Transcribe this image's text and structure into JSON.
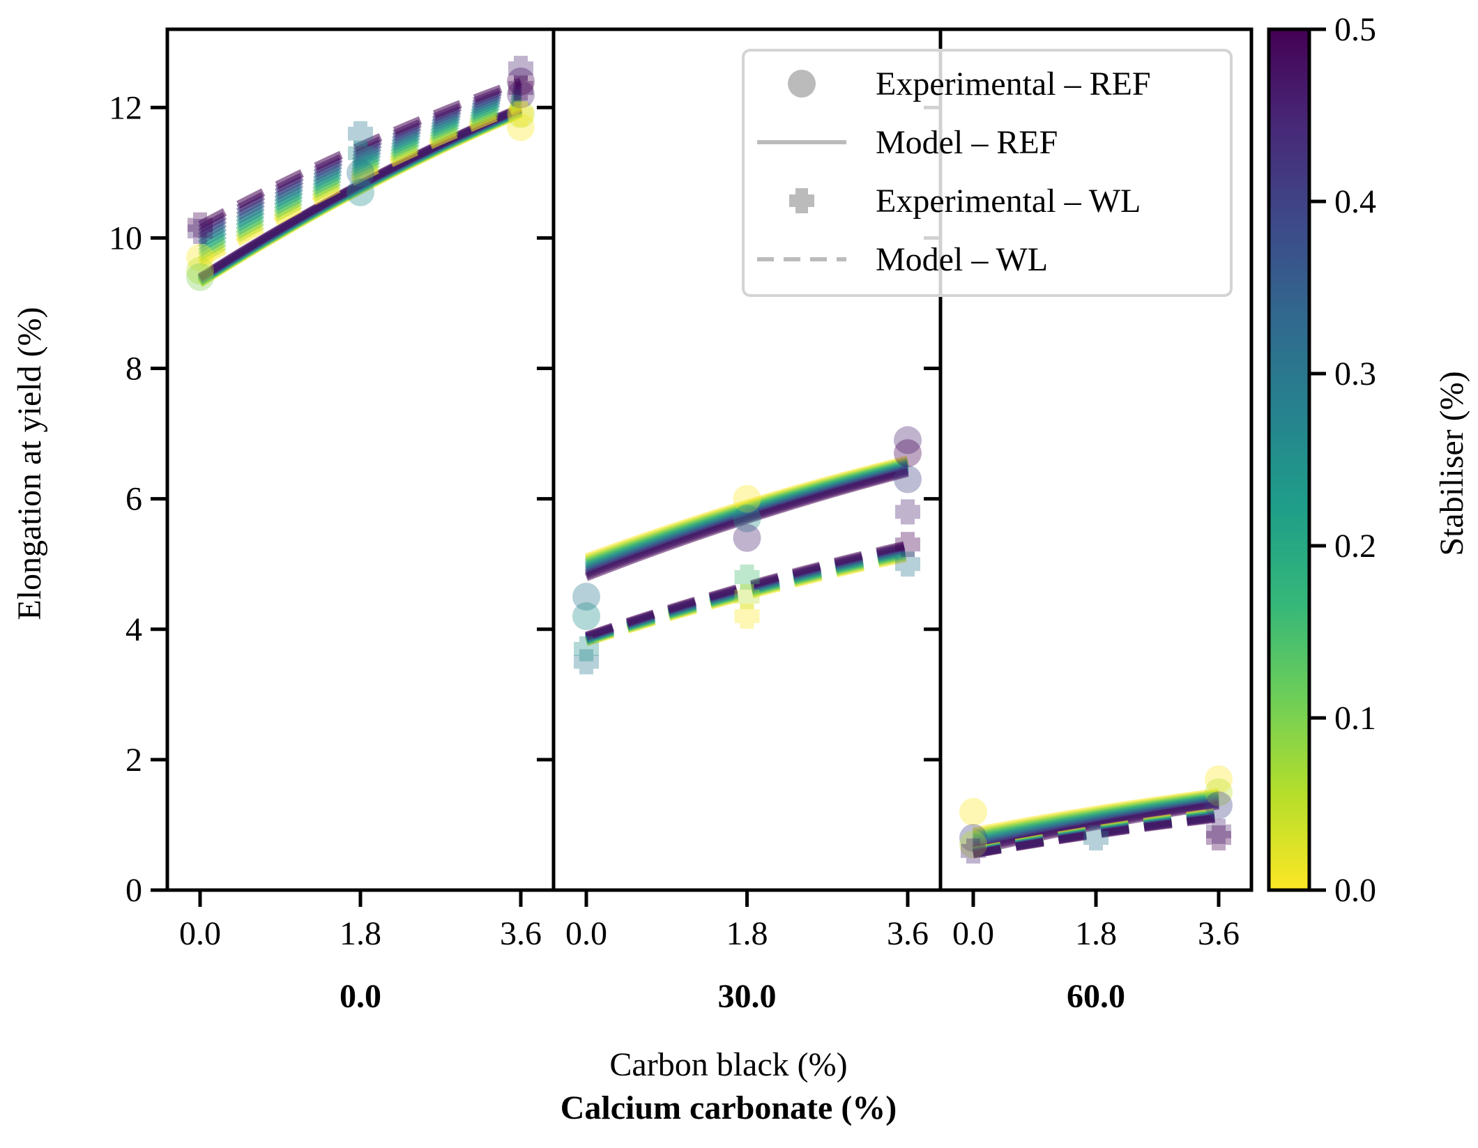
{
  "chart_data": {
    "type": "scatter",
    "ylabel": "Elongation at yield (%)",
    "xlabel": "Carbon black (%)",
    "group_axis_label": "Calcium carbonate (%)",
    "ylim": [
      0,
      13.2
    ],
    "yticks": [
      "0",
      "2",
      "4",
      "6",
      "8",
      "10",
      "12"
    ],
    "xticks": [
      "0.0",
      "1.8",
      "3.6"
    ],
    "colorbar": {
      "label": "Stabiliser (%)",
      "range": [
        0.0,
        0.5
      ],
      "ticks": [
        "0.0",
        "0.1",
        "0.2",
        "0.3",
        "0.4",
        "0.5"
      ],
      "colormap": "viridis_r",
      "colors": [
        "#fde725",
        "#b5de2b",
        "#6ece58",
        "#35b779",
        "#1f9e89",
        "#26828e",
        "#31688e",
        "#3e4989",
        "#482878",
        "#440154"
      ]
    },
    "legend": {
      "entries": [
        {
          "label": "Experimental – REF",
          "marker": "circle"
        },
        {
          "label": "Model – REF",
          "marker": "solid-line"
        },
        {
          "label": "Experimental – WL",
          "marker": "plus"
        },
        {
          "label": "Model – WL",
          "marker": "dashed-line"
        }
      ],
      "placement": "top-right",
      "color": "#bbbbbb"
    },
    "panels": [
      {
        "group": "0.0",
        "model_ref": {
          "x": [
            0.0,
            3.6
          ],
          "high_stab": [
            9.4,
            12.0
          ],
          "low_stab": [
            9.3,
            11.9
          ]
        },
        "model_wl": {
          "x": [
            0.0,
            3.6
          ],
          "high_stab": [
            10.2,
            12.4
          ],
          "low_stab": [
            9.6,
            12.0
          ]
        },
        "experimental_ref": [
          {
            "x": 0.0,
            "y": 9.7,
            "s": 0.0
          },
          {
            "x": 0.0,
            "y": 9.5,
            "s": 0.05
          },
          {
            "x": 0.0,
            "y": 9.4,
            "s": 0.1
          },
          {
            "x": 1.8,
            "y": 10.7,
            "s": 0.25
          },
          {
            "x": 1.8,
            "y": 11.0,
            "s": 0.3
          },
          {
            "x": 3.6,
            "y": 11.7,
            "s": 0.0
          },
          {
            "x": 3.6,
            "y": 11.9,
            "s": 0.05
          },
          {
            "x": 3.6,
            "y": 12.2,
            "s": 0.45
          },
          {
            "x": 3.6,
            "y": 12.4,
            "s": 0.5
          }
        ],
        "experimental_wl": [
          {
            "x": 0.0,
            "y": 10.2,
            "s": 0.5
          },
          {
            "x": 0.0,
            "y": 10.1,
            "s": 0.45
          },
          {
            "x": 1.8,
            "y": 11.6,
            "s": 0.3
          },
          {
            "x": 1.8,
            "y": 11.3,
            "s": 0.25
          },
          {
            "x": 3.6,
            "y": 12.6,
            "s": 0.45
          },
          {
            "x": 3.6,
            "y": 12.3,
            "s": 0.5
          },
          {
            "x": 3.6,
            "y": 11.9,
            "s": 0.0
          }
        ]
      },
      {
        "group": "30.0",
        "model_ref": {
          "x": [
            0.0,
            3.6
          ],
          "high_stab": [
            4.8,
            6.4
          ],
          "low_stab": [
            5.1,
            6.6
          ]
        },
        "model_wl": {
          "x": [
            0.0,
            3.6
          ],
          "high_stab": [
            3.9,
            5.3
          ],
          "low_stab": [
            3.8,
            5.1
          ]
        },
        "experimental_ref": [
          {
            "x": 0.0,
            "y": 4.5,
            "s": 0.3
          },
          {
            "x": 0.0,
            "y": 4.2,
            "s": 0.25
          },
          {
            "x": 1.8,
            "y": 6.0,
            "s": 0.0
          },
          {
            "x": 1.8,
            "y": 5.7,
            "s": 0.25
          },
          {
            "x": 1.8,
            "y": 5.4,
            "s": 0.45
          },
          {
            "x": 3.6,
            "y": 6.9,
            "s": 0.45
          },
          {
            "x": 3.6,
            "y": 6.7,
            "s": 0.5
          },
          {
            "x": 3.6,
            "y": 6.3,
            "s": 0.4
          }
        ],
        "experimental_wl": [
          {
            "x": 0.0,
            "y": 3.5,
            "s": 0.3
          },
          {
            "x": 0.0,
            "y": 3.7,
            "s": 0.25
          },
          {
            "x": 1.8,
            "y": 4.8,
            "s": 0.15
          },
          {
            "x": 1.8,
            "y": 4.5,
            "s": 0.05
          },
          {
            "x": 1.8,
            "y": 4.2,
            "s": 0.0
          },
          {
            "x": 3.6,
            "y": 5.8,
            "s": 0.45
          },
          {
            "x": 3.6,
            "y": 5.3,
            "s": 0.5
          },
          {
            "x": 3.6,
            "y": 5.0,
            "s": 0.3
          }
        ]
      },
      {
        "group": "60.0",
        "model_ref": {
          "x": [
            0.0,
            3.6
          ],
          "high_stab": [
            0.6,
            1.3
          ],
          "low_stab": [
            0.9,
            1.5
          ]
        },
        "model_wl": {
          "x": [
            0.0,
            3.6
          ],
          "high_stab": [
            0.55,
            1.1
          ],
          "low_stab": [
            0.6,
            1.2
          ]
        },
        "experimental_ref": [
          {
            "x": 0.0,
            "y": 1.2,
            "s": 0.0
          },
          {
            "x": 0.0,
            "y": 0.8,
            "s": 0.4
          },
          {
            "x": 0.0,
            "y": 0.7,
            "s": 0.05
          },
          {
            "x": 3.6,
            "y": 1.7,
            "s": 0.0
          },
          {
            "x": 3.6,
            "y": 1.5,
            "s": 0.05
          },
          {
            "x": 3.6,
            "y": 1.3,
            "s": 0.4
          }
        ],
        "experimental_wl": [
          {
            "x": 0.0,
            "y": 0.6,
            "s": 0.45
          },
          {
            "x": 1.8,
            "y": 0.8,
            "s": 0.3
          },
          {
            "x": 3.6,
            "y": 0.9,
            "s": 0.45
          },
          {
            "x": 3.6,
            "y": 0.8,
            "s": 0.5
          }
        ]
      }
    ]
  }
}
